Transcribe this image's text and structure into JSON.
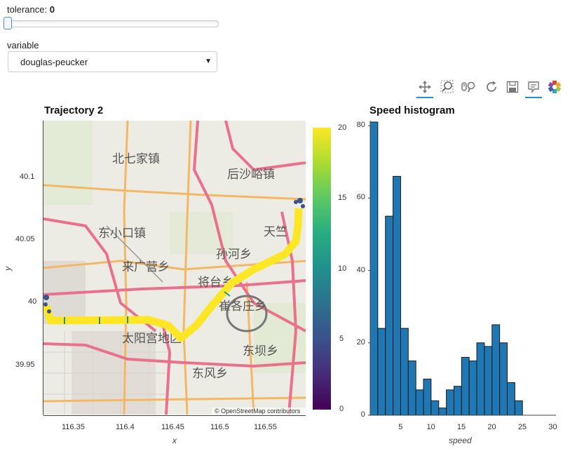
{
  "widgets": {
    "tolerance_label": "tolerance:",
    "tolerance_value": "0",
    "slider_value_fraction": 0,
    "variable_label": "variable",
    "variable_selected": "douglas-peucker"
  },
  "toolbar": {
    "tools": [
      "pan-icon",
      "box-zoom-icon",
      "wheel-zoom-icon",
      "reset-icon",
      "save-icon",
      "hover-icon",
      "bokeh-logo-icon"
    ],
    "active_color": "#2a8dd4"
  },
  "map": {
    "title": "Trajectory 2",
    "xlabel": "x",
    "ylabel": "y",
    "x_ticks": [
      "116.35",
      "116.4",
      "116.45",
      "116.5",
      "116.55"
    ],
    "y_ticks": [
      "40.1",
      "40.05",
      "40",
      "39.95"
    ],
    "attribution": "© OpenStreetMap contributors",
    "place_labels": [
      "北七家镇",
      "后沙峪镇",
      "东小口镇",
      "天竺",
      "孙河乡",
      "来广营乡",
      "将台乡",
      "崔各庄乡",
      "太阳宫地区",
      "东坝乡",
      "东风乡"
    ],
    "colorbar_ticks": [
      "20",
      "15",
      "10",
      "5",
      "0"
    ],
    "colormap": "viridis",
    "trajectory_color": "#fde725"
  },
  "chart_data": {
    "type": "bar",
    "title": "Speed histogram",
    "xlabel": "speed",
    "ylabel": "",
    "bar_color": "#1f77b4",
    "x_ticks": [
      5,
      10,
      15,
      20,
      25,
      30
    ],
    "y_ticks": [
      0,
      20,
      40,
      60,
      80
    ],
    "xlim": [
      0,
      30.5
    ],
    "ylim": [
      0,
      81
    ],
    "bin_width": 1.25,
    "bin_start": 0,
    "values": [
      81,
      24,
      55,
      66,
      24,
      15,
      7,
      10,
      4,
      2,
      7,
      8,
      16,
      15,
      20,
      19,
      25,
      20,
      9,
      4
    ]
  }
}
